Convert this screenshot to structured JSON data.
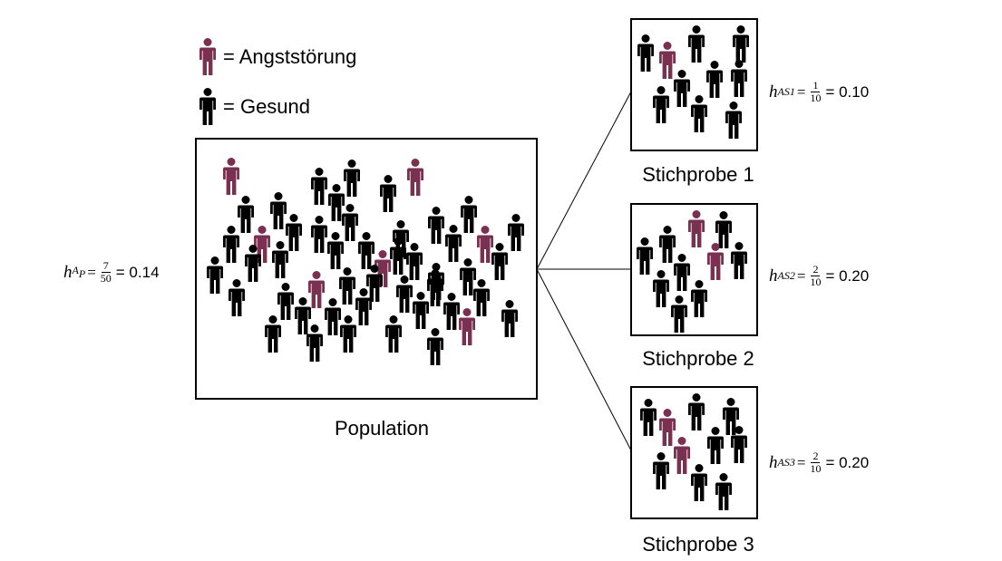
{
  "colors": {
    "anxiety": "#7a3050",
    "healthy": "#000000"
  },
  "legend": {
    "anxiety_icon": "person-icon",
    "anxiety_label": "= Angststörung",
    "healthy_icon": "person-icon",
    "healthy_label": "= Gesund"
  },
  "population": {
    "caption": "Population",
    "formula": {
      "var": "h",
      "sub": "A",
      "subsub": "P",
      "num": "7",
      "den": "50",
      "value": "= 0.14"
    },
    "count_total": 50,
    "count_anxiety": 7
  },
  "samples": [
    {
      "caption": "Stichprobe 1",
      "formula": {
        "var": "h",
        "sub": "A",
        "subsub": "S1",
        "num": "1",
        "den": "10",
        "value": "= 0.10"
      },
      "count_total": 10,
      "count_anxiety": 1
    },
    {
      "caption": "Stichprobe 2",
      "formula": {
        "var": "h",
        "sub": "A",
        "subsub": "S2",
        "num": "2",
        "den": "10",
        "value": "= 0.20"
      },
      "count_total": 10,
      "count_anxiety": 2
    },
    {
      "caption": "Stichprobe 3",
      "formula": {
        "var": "h",
        "sub": "A",
        "subsub": "S3",
        "num": "2",
        "den": "10",
        "value": "= 0.20"
      },
      "count_total": 10,
      "count_anxiety": 2
    }
  ]
}
